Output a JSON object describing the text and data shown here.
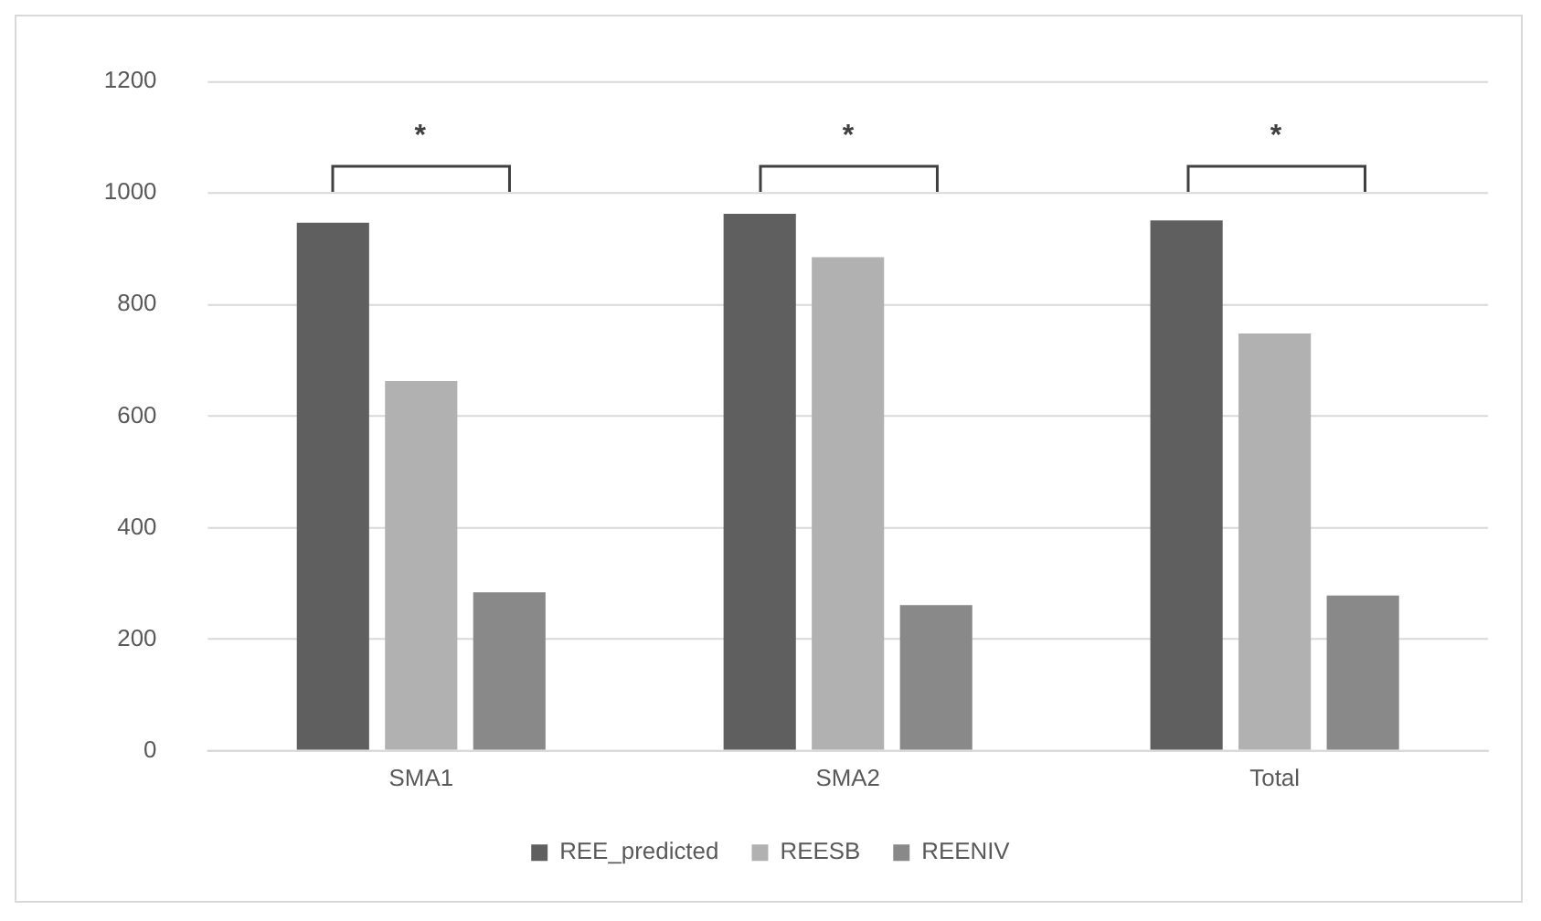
{
  "chart_data": {
    "type": "bar",
    "categories": [
      "SMA1",
      "SMA2",
      "Total"
    ],
    "series": [
      {
        "name": "REE_predicted",
        "color": "#5f5f5f",
        "values": [
          947,
          963,
          951
        ]
      },
      {
        "name": "REESB",
        "color": "#b1b1b1",
        "values": [
          663,
          885,
          748
        ]
      },
      {
        "name": "REENIV",
        "color": "#898989",
        "values": [
          284,
          261,
          278
        ]
      }
    ],
    "ylim": [
      0,
      1200
    ],
    "yticks": [
      0,
      200,
      400,
      600,
      800,
      1000,
      1200
    ],
    "grid": "y",
    "legend": "bottom",
    "annotations": [
      "*",
      "*",
      "*"
    ]
  }
}
